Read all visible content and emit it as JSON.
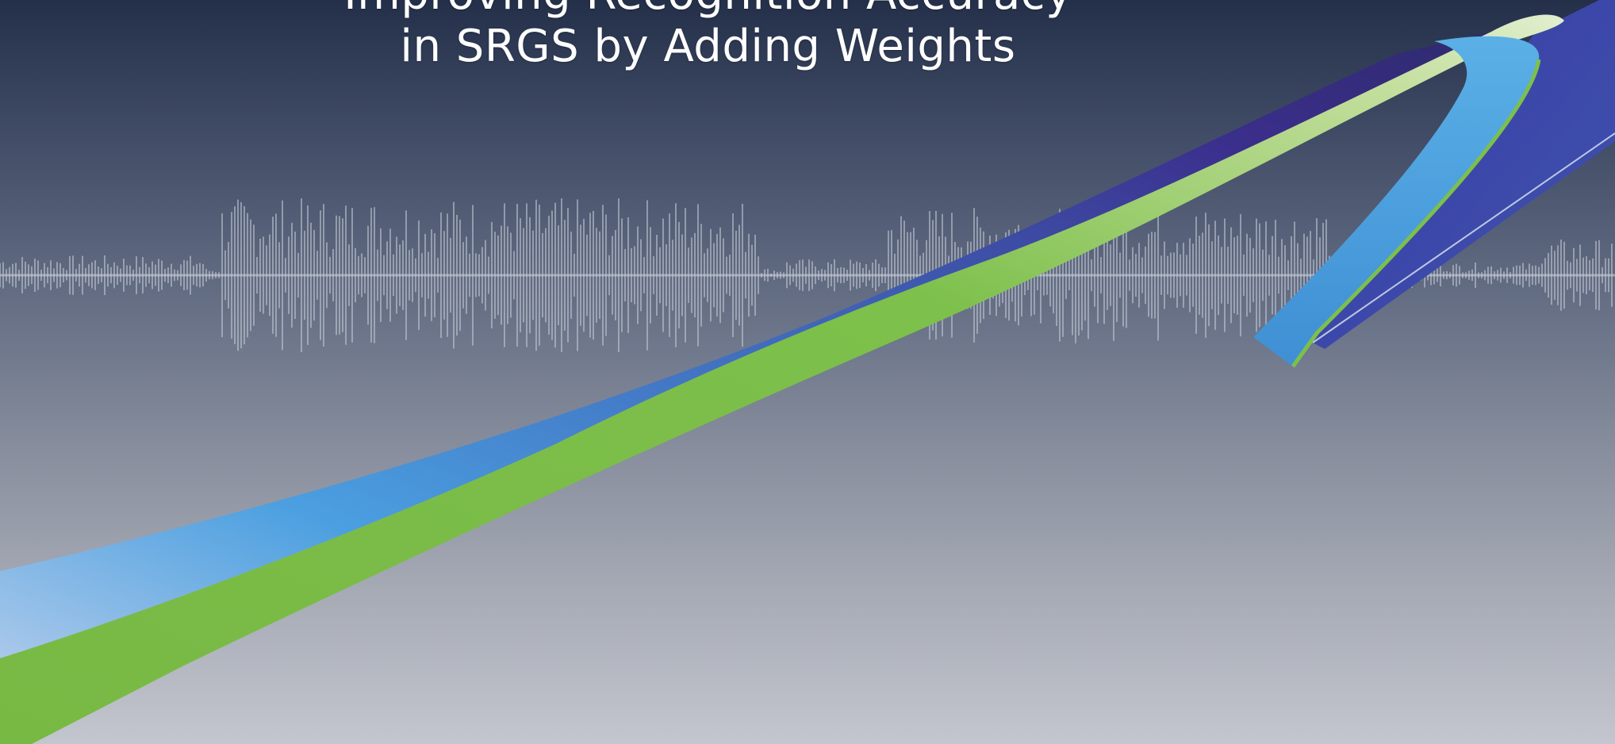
{
  "slide": {
    "title_line_1": "Improving Recognition Accuracy",
    "title_line_2": "in SRGS by Adding Weights"
  },
  "decorations": {
    "waveform_color": "#c9ced8",
    "ribbon_blue": "#3f66b8",
    "ribbon_light_blue": "#4aa0df",
    "ribbon_green": "#7cc04a",
    "ribbon_highlight": "#d9ebc4"
  }
}
